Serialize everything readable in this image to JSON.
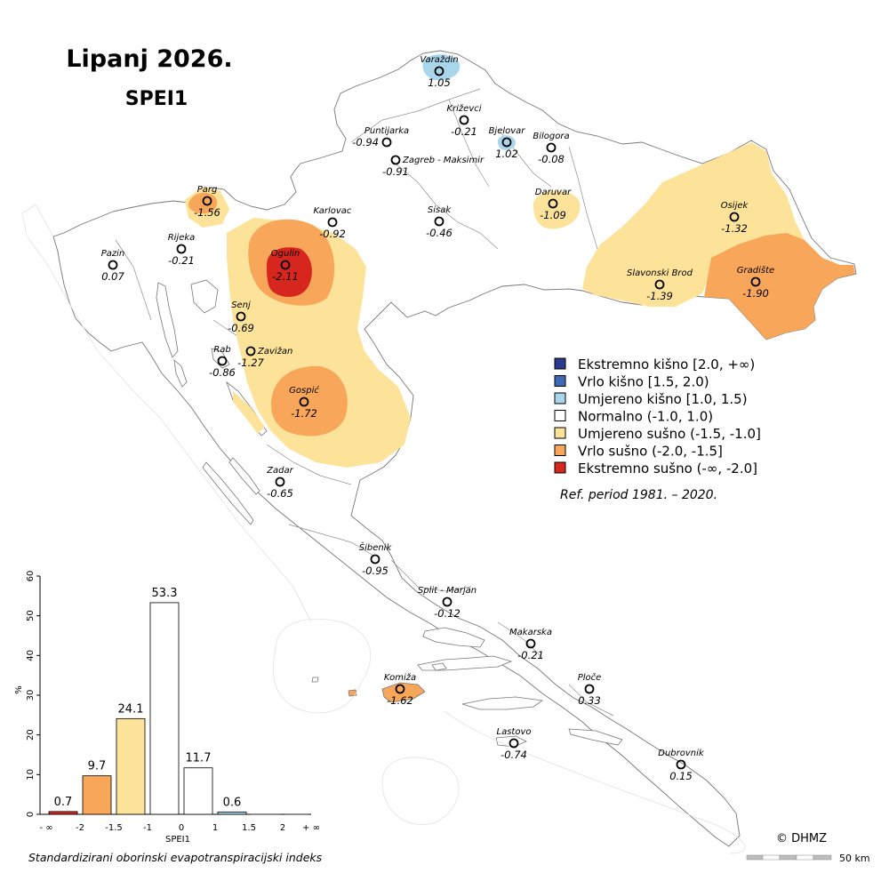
{
  "title": {
    "main": "Lipanj 2026.",
    "sub": "SPEI1"
  },
  "legend": {
    "items": [
      {
        "label": "Ekstremno kišno [2.0, +∞)",
        "color": "#2b3990"
      },
      {
        "label": "Vrlo kišno [1.5, 2.0)",
        "color": "#3f69b4"
      },
      {
        "label": "Umjereno kišno [1.0, 1.5)",
        "color": "#a9d6ea"
      },
      {
        "label": "Normalno (-1.0, 1.0)",
        "color": "#ffffff"
      },
      {
        "label": "Umjereno sušno (-1.5, -1.0]",
        "color": "#fde39a"
      },
      {
        "label": "Vrlo sušno (-2.0, -1.5]",
        "color": "#f8a65a"
      },
      {
        "label": "Ekstremno sušno (-∞, -2.0]",
        "color": "#d7261e"
      }
    ],
    "ref_period": "Ref. period 1981. – 2020."
  },
  "stations": [
    {
      "name": "Varaždin",
      "value": "1.05"
    },
    {
      "name": "Križevci",
      "value": "-0.21"
    },
    {
      "name": "Puntijarka",
      "value": "-0.94"
    },
    {
      "name": "Bjelovar",
      "value": "1.02"
    },
    {
      "name": "Bilogora",
      "value": "-0.08"
    },
    {
      "name": "Zagreb - Maksimir",
      "value": "-0.91"
    },
    {
      "name": "Parg",
      "value": "-1.56"
    },
    {
      "name": "Karlovac",
      "value": "-0.92"
    },
    {
      "name": "Sisak",
      "value": "-0.46"
    },
    {
      "name": "Daruvar",
      "value": "-1.09"
    },
    {
      "name": "Osijek",
      "value": "-1.32"
    },
    {
      "name": "Rijeka",
      "value": "-0.21"
    },
    {
      "name": "Pazin",
      "value": "0.07"
    },
    {
      "name": "Ogulin",
      "value": "-2.11"
    },
    {
      "name": "Slavonski Brod",
      "value": "-1.39"
    },
    {
      "name": "Gradište",
      "value": "-1.90"
    },
    {
      "name": "Senj",
      "value": "-0.69"
    },
    {
      "name": "Zavižan",
      "value": "-1.27"
    },
    {
      "name": "Rab",
      "value": "-0.86"
    },
    {
      "name": "Gospić",
      "value": "-1.72"
    },
    {
      "name": "Zadar",
      "value": "-0.65"
    },
    {
      "name": "Šibenik",
      "value": "-0.95"
    },
    {
      "name": "Split - Marjan",
      "value": "-0.12"
    },
    {
      "name": "Makarska",
      "value": "-0.21"
    },
    {
      "name": "Komiža",
      "value": "-1.62"
    },
    {
      "name": "Ploče",
      "value": "0.33"
    },
    {
      "name": "Lastovo",
      "value": "-0.74"
    },
    {
      "name": "Dubrovnik",
      "value": "0.15"
    }
  ],
  "chart_data": {
    "type": "bar",
    "title": "",
    "xlabel": "SPEI1",
    "ylabel": "%",
    "caption": "Standardizirani oborinski evapotranspiracijski indeks",
    "ylim": [
      0,
      60
    ],
    "yticks": [
      "0",
      "10",
      "20",
      "30",
      "40",
      "50",
      "60"
    ],
    "xticks": [
      "- ∞",
      "-2",
      "-1.5",
      "-1",
      "0",
      "1",
      "1.5",
      "2",
      "+ ∞"
    ],
    "values": [
      0.7,
      9.7,
      24.1,
      53.3,
      11.7,
      0.6,
      0,
      0
    ],
    "value_labels": [
      "0.7",
      "9.7",
      "24.1",
      "53.3",
      "11.7",
      "0.6",
      "",
      ""
    ],
    "colors": [
      "#d7261e",
      "#f8a65a",
      "#fde39a",
      "#ffffff",
      "#ffffff",
      "#a9d6ea",
      "#3f69b4",
      "#2b3990"
    ]
  },
  "footer": {
    "copyright": "© DHMZ",
    "scale_label": "50 km"
  }
}
